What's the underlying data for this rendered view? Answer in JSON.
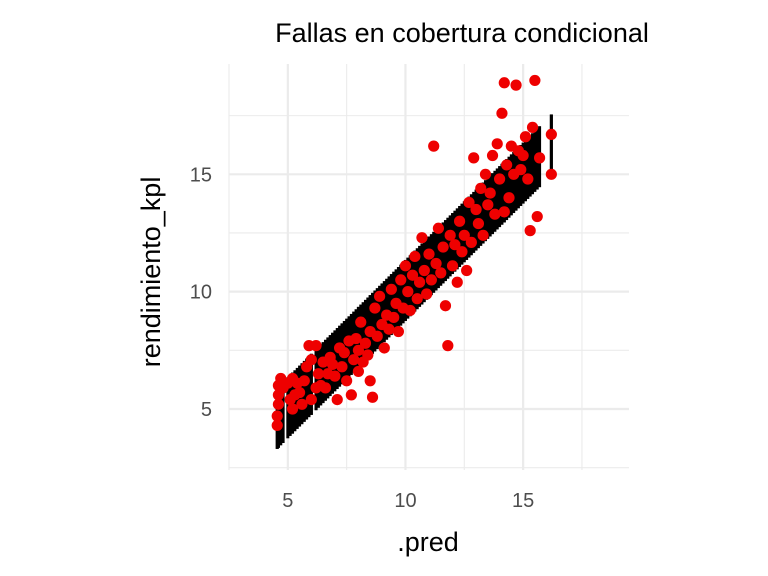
{
  "chart_data": {
    "type": "scatter",
    "title": "Fallas en cobertura condicional",
    "xlabel": ".pred",
    "ylabel": "rendimiento_kpl",
    "xlim": [
      2.5,
      19.5
    ],
    "ylim": [
      2.4,
      19.7
    ],
    "x_ticks": [
      5,
      10,
      15
    ],
    "y_ticks": [
      5,
      10,
      15
    ],
    "x_tick_labels": [
      "5",
      "10",
      "15"
    ],
    "y_tick_labels": [
      "5",
      "10",
      "15"
    ],
    "grid": true,
    "legend": "none",
    "colors": {
      "points": "#ee0000",
      "intervals": "#000000",
      "grid": "#ebebeb"
    },
    "interval": {
      "lower_offset": -1.25,
      "upper_offset": 1.35,
      "description_free": true
    },
    "points": [
      [
        4.55,
        4.3
      ],
      [
        4.55,
        4.7
      ],
      [
        4.6,
        5.2
      ],
      [
        4.6,
        5.6
      ],
      [
        4.6,
        6.0
      ],
      [
        4.7,
        6.3
      ],
      [
        4.8,
        5.9
      ],
      [
        5.0,
        6.1
      ],
      [
        5.1,
        5.4
      ],
      [
        5.2,
        5.0
      ],
      [
        5.2,
        6.3
      ],
      [
        5.3,
        5.6
      ],
      [
        5.4,
        6.1
      ],
      [
        5.5,
        5.7
      ],
      [
        5.6,
        5.2
      ],
      [
        5.7,
        6.2
      ],
      [
        5.8,
        6.8
      ],
      [
        5.9,
        7.7
      ],
      [
        6.0,
        5.4
      ],
      [
        6.0,
        7.1
      ],
      [
        6.2,
        5.9
      ],
      [
        6.2,
        7.7
      ],
      [
        6.3,
        6.5
      ],
      [
        6.4,
        6.0
      ],
      [
        6.5,
        7.0
      ],
      [
        6.6,
        5.9
      ],
      [
        6.7,
        6.5
      ],
      [
        6.8,
        7.2
      ],
      [
        6.9,
        6.9
      ],
      [
        7.0,
        6.4
      ],
      [
        7.1,
        5.4
      ],
      [
        7.2,
        7.6
      ],
      [
        7.3,
        6.8
      ],
      [
        7.4,
        7.4
      ],
      [
        7.5,
        6.2
      ],
      [
        7.6,
        7.9
      ],
      [
        7.7,
        5.6
      ],
      [
        7.8,
        7.1
      ],
      [
        7.9,
        8.0
      ],
      [
        8.0,
        6.6
      ],
      [
        8.0,
        7.5
      ],
      [
        8.1,
        8.7
      ],
      [
        8.2,
        7.0
      ],
      [
        8.3,
        7.8
      ],
      [
        8.4,
        7.3
      ],
      [
        8.5,
        8.3
      ],
      [
        8.5,
        6.2
      ],
      [
        8.6,
        5.5
      ],
      [
        8.7,
        9.3
      ],
      [
        8.8,
        8.1
      ],
      [
        8.9,
        9.8
      ],
      [
        9.0,
        8.6
      ],
      [
        9.1,
        7.6
      ],
      [
        9.2,
        9.0
      ],
      [
        9.3,
        8.4
      ],
      [
        9.4,
        10.1
      ],
      [
        9.5,
        8.9
      ],
      [
        9.6,
        9.5
      ],
      [
        9.7,
        8.3
      ],
      [
        9.8,
        10.5
      ],
      [
        9.9,
        9.3
      ],
      [
        10.0,
        11.1
      ],
      [
        10.1,
        10.0
      ],
      [
        10.2,
        9.2
      ],
      [
        10.3,
        10.7
      ],
      [
        10.4,
        11.5
      ],
      [
        10.5,
        9.7
      ],
      [
        10.6,
        10.4
      ],
      [
        10.7,
        12.3
      ],
      [
        10.8,
        10.9
      ],
      [
        10.9,
        9.9
      ],
      [
        11.0,
        11.6
      ],
      [
        11.1,
        10.5
      ],
      [
        11.2,
        16.2
      ],
      [
        11.3,
        11.2
      ],
      [
        11.4,
        12.7
      ],
      [
        11.5,
        10.8
      ],
      [
        11.6,
        11.9
      ],
      [
        11.7,
        9.4
      ],
      [
        11.8,
        7.7
      ],
      [
        11.9,
        12.4
      ],
      [
        12.0,
        11.1
      ],
      [
        12.1,
        12.0
      ],
      [
        12.2,
        10.4
      ],
      [
        12.3,
        13.0
      ],
      [
        12.4,
        11.7
      ],
      [
        12.5,
        12.4
      ],
      [
        12.6,
        10.9
      ],
      [
        12.7,
        13.8
      ],
      [
        12.8,
        12.1
      ],
      [
        12.9,
        15.7
      ],
      [
        13.0,
        13.5
      ],
      [
        13.1,
        12.9
      ],
      [
        13.2,
        14.4
      ],
      [
        13.3,
        12.4
      ],
      [
        13.4,
        15.0
      ],
      [
        13.5,
        13.7
      ],
      [
        13.6,
        14.2
      ],
      [
        13.7,
        15.8
      ],
      [
        13.8,
        13.3
      ],
      [
        13.9,
        16.3
      ],
      [
        14.0,
        14.8
      ],
      [
        14.1,
        17.6
      ],
      [
        14.2,
        13.4
      ],
      [
        14.2,
        18.9
      ],
      [
        14.3,
        15.4
      ],
      [
        14.4,
        14.0
      ],
      [
        14.5,
        16.2
      ],
      [
        14.6,
        15.0
      ],
      [
        14.7,
        18.8
      ],
      [
        14.8,
        16.0
      ],
      [
        14.9,
        15.2
      ],
      [
        15.0,
        15.8
      ],
      [
        15.1,
        16.6
      ],
      [
        15.2,
        14.8
      ],
      [
        15.3,
        12.6
      ],
      [
        15.4,
        17.0
      ],
      [
        15.5,
        19.0
      ],
      [
        15.6,
        13.2
      ],
      [
        15.7,
        15.7
      ],
      [
        16.2,
        16.7
      ],
      [
        16.2,
        15.0
      ]
    ]
  }
}
